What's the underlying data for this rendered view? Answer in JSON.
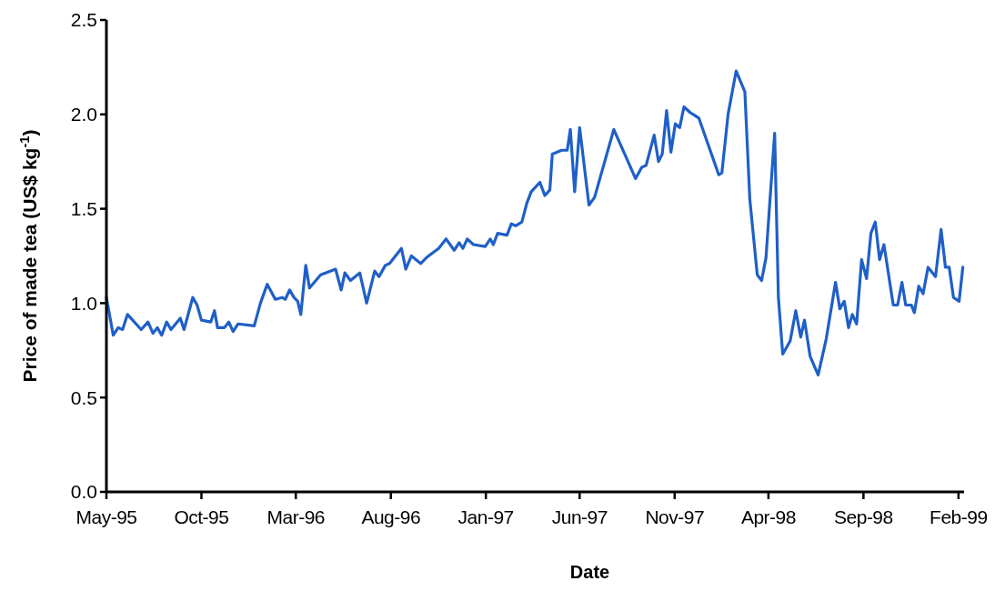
{
  "chart_data": {
    "type": "line",
    "xlabel": "Date",
    "ylabel": "Price of made tea (US$ kg$^{-1}$)",
    "x": [
      "1995-05-01",
      "1995-05-12",
      "1995-05-20",
      "1995-05-27",
      "1995-06-04",
      "1995-06-26",
      "1995-07-07",
      "1995-07-15",
      "1995-07-22",
      "1995-07-29",
      "1995-08-06",
      "1995-08-13",
      "1995-08-28",
      "1995-09-03",
      "1995-09-17",
      "1995-09-24",
      "1995-10-01",
      "1995-10-16",
      "1995-10-22",
      "1995-10-27",
      "1995-11-07",
      "1995-11-14",
      "1995-11-21",
      "1995-11-29",
      "1995-12-25",
      "1996-01-04",
      "1996-01-15",
      "1996-01-28",
      "1996-02-08",
      "1996-02-13",
      "1996-02-20",
      "1996-02-27",
      "1996-03-04",
      "1996-03-09",
      "1996-03-17",
      "1996-03-23",
      "1996-04-10",
      "1996-05-04",
      "1996-05-13",
      "1996-05-19",
      "1996-05-28",
      "1996-06-12",
      "1996-06-23",
      "1996-07-06",
      "1996-07-13",
      "1996-07-23",
      "1996-07-30",
      "1996-08-18",
      "1996-08-25",
      "1996-09-03",
      "1996-09-18",
      "1996-09-27",
      "1996-10-09",
      "1996-10-17",
      "1996-10-29",
      "1996-11-11",
      "1996-11-19",
      "1996-11-25",
      "1996-12-02",
      "1996-12-12",
      "1996-12-31",
      "1997-01-08",
      "1997-01-13",
      "1997-01-20",
      "1997-02-04",
      "1997-02-11",
      "1997-02-18",
      "1997-02-28",
      "1997-03-08",
      "1997-03-15",
      "1997-03-29",
      "1997-04-06",
      "1997-04-14",
      "1997-04-18",
      "1997-05-03",
      "1997-05-12",
      "1997-05-17",
      "1997-05-24",
      "1997-06-01",
      "1997-06-16",
      "1997-06-25",
      "1997-07-26",
      "1997-08-30",
      "1997-09-09",
      "1997-09-16",
      "1997-09-29",
      "1997-10-06",
      "1997-10-12",
      "1997-10-19",
      "1997-10-26",
      "1997-11-02",
      "1997-11-09",
      "1997-11-16",
      "1997-11-26",
      "1997-12-10",
      "1998-01-11",
      "1998-01-16",
      "1998-01-26",
      "1998-02-08",
      "1998-02-22",
      "1998-03-02",
      "1998-03-14",
      "1998-03-21",
      "1998-03-28",
      "1998-04-11",
      "1998-04-17",
      "1998-04-24",
      "1998-05-06",
      "1998-05-15",
      "1998-05-23",
      "1998-05-29",
      "1998-06-07",
      "1998-06-20",
      "1998-07-03",
      "1998-07-18",
      "1998-07-25",
      "1998-08-01",
      "1998-08-08",
      "1998-08-14",
      "1998-08-21",
      "1998-08-29",
      "1998-09-06",
      "1998-09-13",
      "1998-09-20",
      "1998-09-27",
      "1998-10-04",
      "1998-10-19",
      "1998-10-26",
      "1998-11-02",
      "1998-11-08",
      "1998-11-17",
      "1998-11-22",
      "1998-11-29",
      "1998-12-06",
      "1998-12-14",
      "1998-12-26",
      "1999-01-04",
      "1999-01-11",
      "1999-01-17",
      "1999-01-24",
      "1999-02-02",
      "1999-02-08"
    ],
    "series": [
      {
        "color": "#1f5fc8",
        "values": [
          1.03,
          0.83,
          0.87,
          0.86,
          0.94,
          0.86,
          0.9,
          0.84,
          0.87,
          0.83,
          0.9,
          0.86,
          0.92,
          0.86,
          1.03,
          0.99,
          0.91,
          0.9,
          0.96,
          0.87,
          0.87,
          0.9,
          0.85,
          0.89,
          0.88,
          1.0,
          1.1,
          1.02,
          1.03,
          1.02,
          1.07,
          1.03,
          1.01,
          0.94,
          1.2,
          1.08,
          1.15,
          1.18,
          1.07,
          1.16,
          1.12,
          1.16,
          1.0,
          1.17,
          1.14,
          1.2,
          1.21,
          1.29,
          1.18,
          1.25,
          1.21,
          1.24,
          1.27,
          1.29,
          1.34,
          1.28,
          1.32,
          1.29,
          1.34,
          1.31,
          1.3,
          1.34,
          1.31,
          1.37,
          1.36,
          1.42,
          1.41,
          1.43,
          1.53,
          1.59,
          1.64,
          1.57,
          1.6,
          1.79,
          1.81,
          1.81,
          1.92,
          1.59,
          1.93,
          1.52,
          1.56,
          1.92,
          1.66,
          1.72,
          1.73,
          1.89,
          1.75,
          1.79,
          2.02,
          1.8,
          1.95,
          1.93,
          2.04,
          2.01,
          1.98,
          1.68,
          1.69,
          2.0,
          2.23,
          2.12,
          1.55,
          1.15,
          1.12,
          1.24,
          1.9,
          1.03,
          0.73,
          0.8,
          0.96,
          0.82,
          0.91,
          0.72,
          0.62,
          0.81,
          1.11,
          0.97,
          1.01,
          0.87,
          0.94,
          0.89,
          1.23,
          1.13,
          1.37,
          1.43,
          1.23,
          1.31,
          0.99,
          0.99,
          1.11,
          0.99,
          0.99,
          0.95,
          1.09,
          1.05,
          1.19,
          1.14,
          1.39,
          1.19,
          1.19,
          1.03,
          1.01,
          1.19
        ]
      }
    ],
    "xlim": [
      "1995-05-01",
      "1999-02-10"
    ],
    "xticks": [
      {
        "value": "1995-05",
        "label": "May-95"
      },
      {
        "value": "1995-10",
        "label": "Oct-95"
      },
      {
        "value": "1996-03",
        "label": "Mar-96"
      },
      {
        "value": "1996-08",
        "label": "Aug-96"
      },
      {
        "value": "1997-01",
        "label": "Jan-97"
      },
      {
        "value": "1997-06",
        "label": "Jun-97"
      },
      {
        "value": "1997-11",
        "label": "Nov-97"
      },
      {
        "value": "1998-04",
        "label": "Apr-98"
      },
      {
        "value": "1998-09",
        "label": "Sep-98"
      },
      {
        "value": "1999-02",
        "label": "Feb-99"
      }
    ],
    "ylim": [
      0,
      2.5
    ],
    "yticks": [
      {
        "value": 0,
        "label": "0.0"
      },
      {
        "value": 0.5,
        "label": "0.5"
      },
      {
        "value": 1,
        "label": "1.0"
      },
      {
        "value": 1.5,
        "label": "1.5"
      },
      {
        "value": 2,
        "label": "2.0"
      },
      {
        "value": 2.5,
        "label": "2.5"
      }
    ],
    "grid": false,
    "marker": "none",
    "line_style": "solid"
  }
}
